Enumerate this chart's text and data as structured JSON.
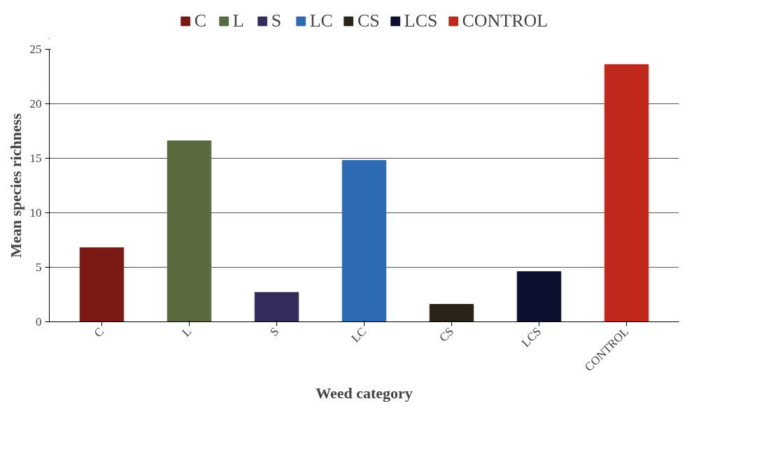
{
  "chart_data": {
    "type": "bar",
    "xlabel": "Weed category",
    "ylabel": "Mean species richness",
    "categories": [
      "C",
      "L",
      "S",
      "LC",
      "CS",
      "LCS",
      "CONTROL"
    ],
    "series": [
      {
        "name": "C",
        "color": "#7b1a14",
        "values": [
          6.8,
          null,
          null,
          null,
          null,
          null,
          null
        ]
      },
      {
        "name": "L",
        "color": "#5a6b40",
        "values": [
          null,
          16.6,
          null,
          null,
          null,
          null,
          null
        ]
      },
      {
        "name": "S",
        "color": "#332d5e",
        "values": [
          null,
          null,
          2.7,
          null,
          null,
          null,
          null
        ]
      },
      {
        "name": "LC",
        "color": "#2d6ab4",
        "values": [
          null,
          null,
          null,
          14.8,
          null,
          null,
          null
        ]
      },
      {
        "name": "CS",
        "color": "#2a2418",
        "values": [
          null,
          null,
          null,
          null,
          1.6,
          null,
          null
        ]
      },
      {
        "name": "LCS",
        "color": "#0e1030",
        "values": [
          null,
          null,
          null,
          null,
          null,
          4.6,
          null
        ]
      },
      {
        "name": "CONTROL",
        "color": "#c0281c",
        "values": [
          null,
          null,
          null,
          null,
          null,
          null,
          23.6
        ]
      }
    ],
    "ylim": [
      0,
      25
    ],
    "yticks": [
      0,
      5,
      10,
      15,
      20,
      25
    ],
    "grid": "y",
    "legend": "top"
  }
}
